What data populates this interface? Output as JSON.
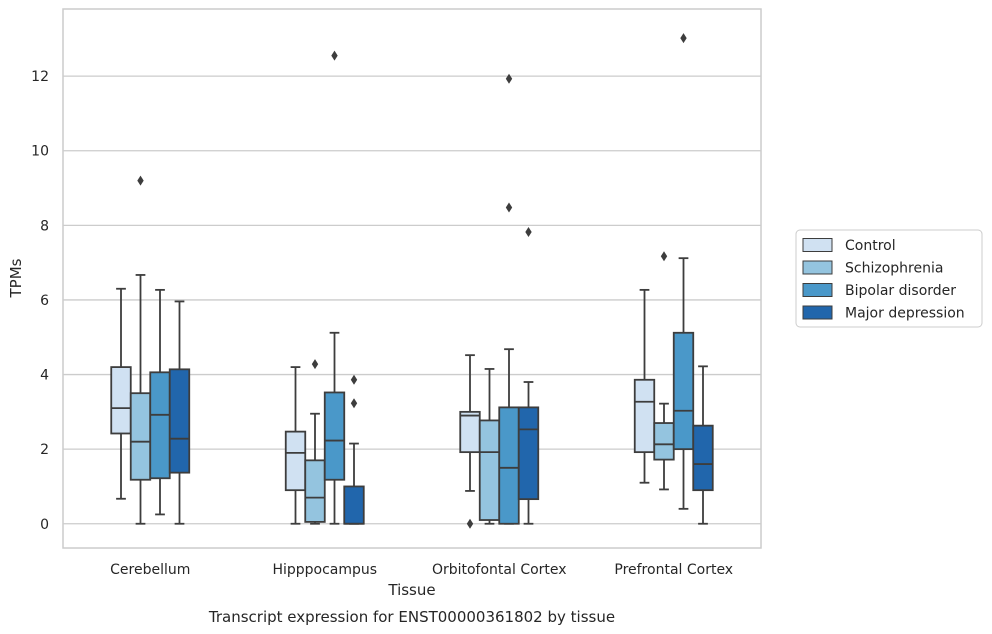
{
  "chart_data": {
    "type": "box",
    "caption": "Transcript expression for ENST00000361802 by tissue",
    "xlabel": "Tissue",
    "ylabel": "TPMs",
    "ylim": [
      -0.65,
      13.8
    ],
    "yticks": [
      0,
      2,
      4,
      6,
      8,
      10,
      12
    ],
    "grid": "horizontal",
    "legend_position": "right",
    "categories": [
      "Cerebellum",
      "Hipppocampus",
      "Orbitofontal Cortex",
      "Prefrontal Cortex"
    ],
    "series": [
      {
        "name": "Control",
        "color": "#d0e1f2",
        "boxes": [
          {
            "whislo": 0.67,
            "q1": 2.42,
            "med": 3.1,
            "q3": 4.2,
            "whishi": 6.3,
            "fliers": []
          },
          {
            "whislo": 0.0,
            "q1": 0.9,
            "med": 1.9,
            "q3": 2.47,
            "whishi": 4.2,
            "fliers": []
          },
          {
            "whislo": 0.88,
            "q1": 1.92,
            "med": 2.9,
            "q3": 3.0,
            "whishi": 4.52,
            "fliers": [
              0.0
            ]
          },
          {
            "whislo": 1.1,
            "q1": 1.92,
            "med": 3.27,
            "q3": 3.86,
            "whishi": 6.27,
            "fliers": []
          }
        ]
      },
      {
        "name": "Schizophrenia",
        "color": "#94c4df",
        "boxes": [
          {
            "whislo": 0.0,
            "q1": 1.18,
            "med": 2.2,
            "q3": 3.5,
            "whishi": 6.67,
            "fliers": [
              9.2
            ]
          },
          {
            "whislo": 0.0,
            "q1": 0.05,
            "med": 0.7,
            "q3": 1.7,
            "whishi": 2.95,
            "fliers": [
              4.28
            ]
          },
          {
            "whislo": 0.0,
            "q1": 0.1,
            "med": 1.92,
            "q3": 2.77,
            "whishi": 4.15,
            "fliers": []
          },
          {
            "whislo": 0.92,
            "q1": 1.72,
            "med": 2.13,
            "q3": 2.7,
            "whishi": 3.22,
            "fliers": [
              7.17
            ]
          }
        ]
      },
      {
        "name": "Bipolar disorder",
        "color": "#4a98c9",
        "boxes": [
          {
            "whislo": 0.25,
            "q1": 1.22,
            "med": 2.92,
            "q3": 4.06,
            "whishi": 6.27,
            "fliers": []
          },
          {
            "whislo": 0.0,
            "q1": 1.18,
            "med": 2.23,
            "q3": 3.52,
            "whishi": 5.12,
            "fliers": [
              12.55
            ]
          },
          {
            "whislo": 0.0,
            "q1": 0.0,
            "med": 1.5,
            "q3": 3.12,
            "whishi": 4.68,
            "fliers": [
              8.48,
              11.93
            ]
          },
          {
            "whislo": 0.4,
            "q1": 2.0,
            "med": 3.03,
            "q3": 5.12,
            "whishi": 7.12,
            "fliers": [
              13.02
            ]
          }
        ]
      },
      {
        "name": "Major depression",
        "color": "#2166ac",
        "boxes": [
          {
            "whislo": 0.0,
            "q1": 1.37,
            "med": 2.28,
            "q3": 4.14,
            "whishi": 5.96,
            "fliers": []
          },
          {
            "whislo": 0.0,
            "q1": 0.0,
            "med": 0.0,
            "q3": 1.0,
            "whishi": 2.15,
            "fliers": [
              3.23,
              3.86
            ]
          },
          {
            "whislo": 0.0,
            "q1": 0.66,
            "med": 2.53,
            "q3": 3.12,
            "whishi": 3.8,
            "fliers": [
              7.82
            ]
          },
          {
            "whislo": 0.0,
            "q1": 0.9,
            "med": 1.6,
            "q3": 2.63,
            "whishi": 4.22,
            "fliers": []
          }
        ]
      }
    ]
  }
}
